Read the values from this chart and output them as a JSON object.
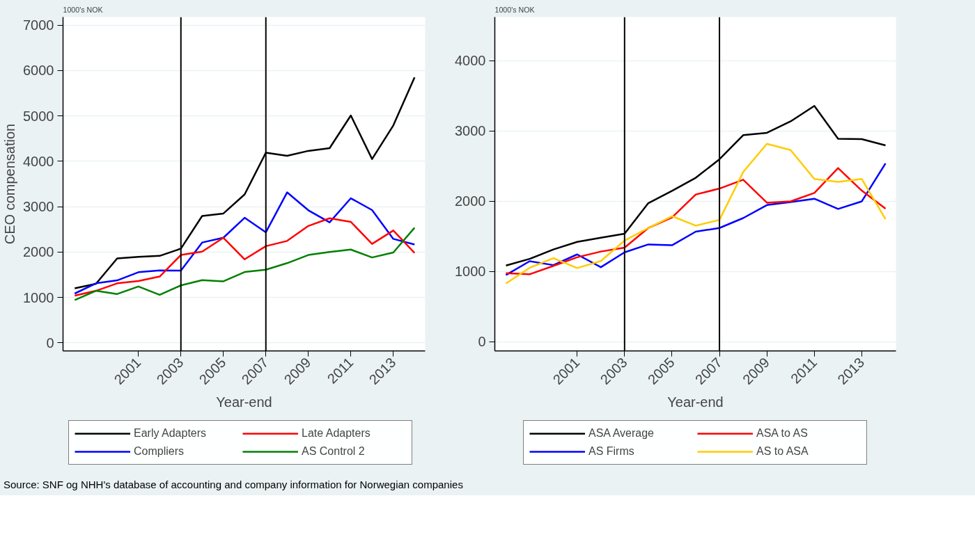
{
  "chart_data": [
    {
      "type": "line",
      "subtitle": "1000's NOK",
      "ylabel": "CEO compensation",
      "xlabel": "Year-end",
      "x": [
        1998,
        1999,
        2000,
        2001,
        2002,
        2003,
        2004,
        2005,
        2006,
        2007,
        2008,
        2009,
        2010,
        2011,
        2012,
        2013,
        2014
      ],
      "xlim": [
        1997.45,
        2014.5
      ],
      "xticks": [
        2001,
        2003,
        2005,
        2007,
        2009,
        2011,
        2013
      ],
      "ylim": [
        -180,
        7180
      ],
      "yticks": [
        0,
        1000,
        2000,
        3000,
        4000,
        5000,
        6000,
        7000
      ],
      "grid": "y",
      "legend": "bottom",
      "ref_lines": [
        {
          "axis": "x",
          "value": 2003,
          "color": "#000000"
        },
        {
          "axis": "x",
          "value": 2007,
          "color": "#000000"
        }
      ],
      "series": [
        {
          "name": "Early Adapters",
          "color": "#000000",
          "values": [
            1200,
            1300,
            1860,
            1895,
            1915,
            2075,
            2795,
            2850,
            3270,
            4190,
            4120,
            4230,
            4290,
            5010,
            4050,
            4790,
            5850
          ]
        },
        {
          "name": "Compliers",
          "color": "#0000ff",
          "values": [
            1085,
            1310,
            1375,
            1555,
            1595,
            1590,
            2210,
            2315,
            2755,
            2435,
            3315,
            2920,
            2655,
            3185,
            2925,
            2290,
            2165
          ]
        },
        {
          "name": "Late Adapters",
          "color": "#ff0000",
          "values": [
            1040,
            1145,
            1310,
            1360,
            1460,
            1935,
            2010,
            2315,
            1840,
            2130,
            2245,
            2575,
            2745,
            2665,
            2180,
            2475,
            1980
          ]
        },
        {
          "name": "AS Control 2",
          "color": "#008000",
          "values": [
            940,
            1145,
            1075,
            1240,
            1055,
            1265,
            1380,
            1355,
            1560,
            1610,
            1755,
            1935,
            2000,
            2055,
            1880,
            1990,
            2535
          ]
        }
      ]
    },
    {
      "type": "line",
      "subtitle": "1000's NOK",
      "xlabel": "Year-end",
      "x": [
        1998,
        1999,
        2000,
        2001,
        2002,
        2003,
        2004,
        2005,
        2006,
        2007,
        2008,
        2009,
        2010,
        2011,
        2012,
        2013,
        2014
      ],
      "xlim": [
        1997.53,
        2014.44
      ],
      "xticks": [
        2001,
        2003,
        2005,
        2007,
        2009,
        2011,
        2013
      ],
      "ylim": [
        -130,
        4620
      ],
      "yticks": [
        0,
        1000,
        2000,
        3000,
        4000
      ],
      "grid": "y",
      "legend": "bottom",
      "ref_lines": [
        {
          "axis": "x",
          "value": 2003,
          "color": "#000000"
        },
        {
          "axis": "x",
          "value": 2007,
          "color": "#000000"
        }
      ],
      "annotations": [
        "Source: SNF og NHH's database of accounting and company information for Norwegian companies"
      ],
      "series": [
        {
          "name": "ASA Average",
          "color": "#000000",
          "values": [
            1084,
            1180,
            1314,
            1421,
            1481,
            1537,
            1972,
            2147,
            2333,
            2597,
            2940,
            2973,
            3136,
            3356,
            2889,
            2884,
            2795
          ]
        },
        {
          "name": "AS Firms",
          "color": "#0000ff",
          "values": [
            950,
            1147,
            1091,
            1243,
            1061,
            1273,
            1385,
            1373,
            1567,
            1619,
            1760,
            1945,
            1987,
            2035,
            1890,
            1998,
            2538
          ]
        },
        {
          "name": "ASA to AS",
          "color": "#ff0000",
          "values": [
            976,
            961,
            1080,
            1202,
            1284,
            1340,
            1619,
            1768,
            2095,
            2180,
            2306,
            1979,
            1998,
            2117,
            2471,
            2150,
            1894
          ]
        },
        {
          "name": "AS to ASA",
          "color": "#ffcc00",
          "values": [
            830,
            1053,
            1190,
            1049,
            1149,
            1440,
            1619,
            1787,
            1652,
            1734,
            2415,
            2817,
            2728,
            2316,
            2275,
            2316,
            1745
          ]
        }
      ]
    }
  ]
}
